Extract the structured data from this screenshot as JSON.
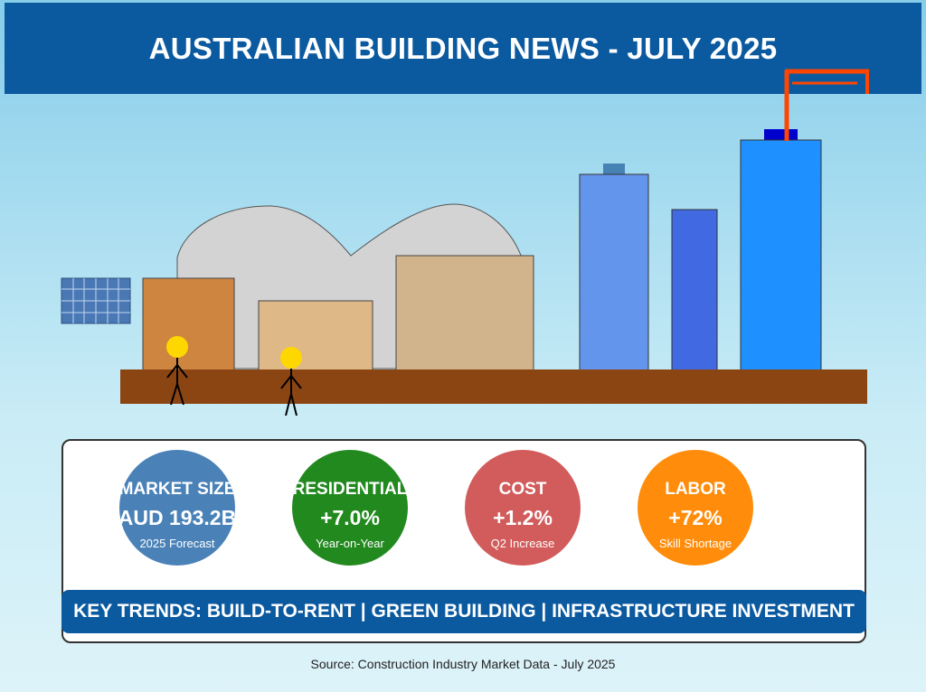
{
  "title": "AUSTRALIAN BUILDING NEWS - JULY 2025",
  "stats": [
    {
      "label": "MARKET SIZE",
      "value": "AUD 193.2B",
      "sub": "2025 Forecast",
      "color": "#4a82b8"
    },
    {
      "label": "RESIDENTIAL",
      "value": "+7.0%",
      "sub": "Year-on-Year",
      "color": "#22891f"
    },
    {
      "label": "COST",
      "value": "+1.2%",
      "sub": "Q2 Increase",
      "color": "#d25b5b"
    },
    {
      "label": "LABOR",
      "value": "+72%",
      "sub": "Skill Shortage",
      "color": "#ff8c0a"
    }
  ],
  "trends": "KEY TRENDS: BUILD-TO-RENT | GREEN BUILDING | INFRASTRUCTURE INVESTMENT",
  "source": "Source: Construction Industry Market Data - July 2025",
  "colors": {
    "header": "#0b5aa0",
    "ground": "#8b4513",
    "crane": "#ff4500",
    "worker_head": "#ffd700"
  }
}
